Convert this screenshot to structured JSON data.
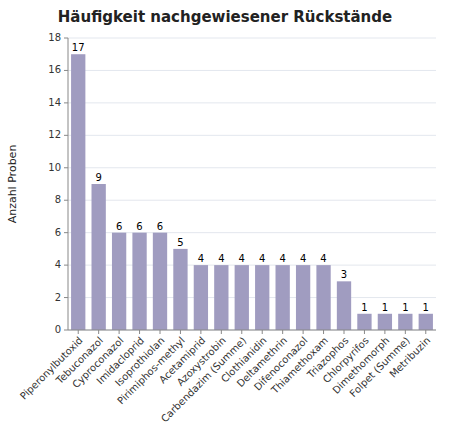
{
  "chart_data": {
    "type": "bar",
    "title": "Häufigkeit nachgewiesener Rückstände",
    "ylabel": "Anzahl Proben",
    "categories": [
      "Piperonylbutoxid",
      "Tebuconazol",
      "Cyproconazol",
      "Imidacloprid",
      "Isoprothiolan",
      "Pirimiphos-methyl",
      "Acetamiprid",
      "Azoxystrobin",
      "Carbendazim (Summe)",
      "Clothianidin",
      "Deltamethrin",
      "Difenoconazol",
      "Thiamethoxam",
      "Triazophos",
      "Chlorpyrifos",
      "Dimethomorph",
      "Folpet (Summe)",
      "Metribuzin"
    ],
    "values": [
      17,
      9,
      6,
      6,
      6,
      5,
      4,
      4,
      4,
      4,
      4,
      4,
      4,
      3,
      1,
      1,
      1,
      1
    ],
    "color": "#a09cc0",
    "ylim": [
      0,
      18
    ],
    "yticks": [
      0,
      2,
      4,
      6,
      8,
      10,
      12,
      14,
      16,
      18
    ],
    "grid": true,
    "data_labels": true
  }
}
